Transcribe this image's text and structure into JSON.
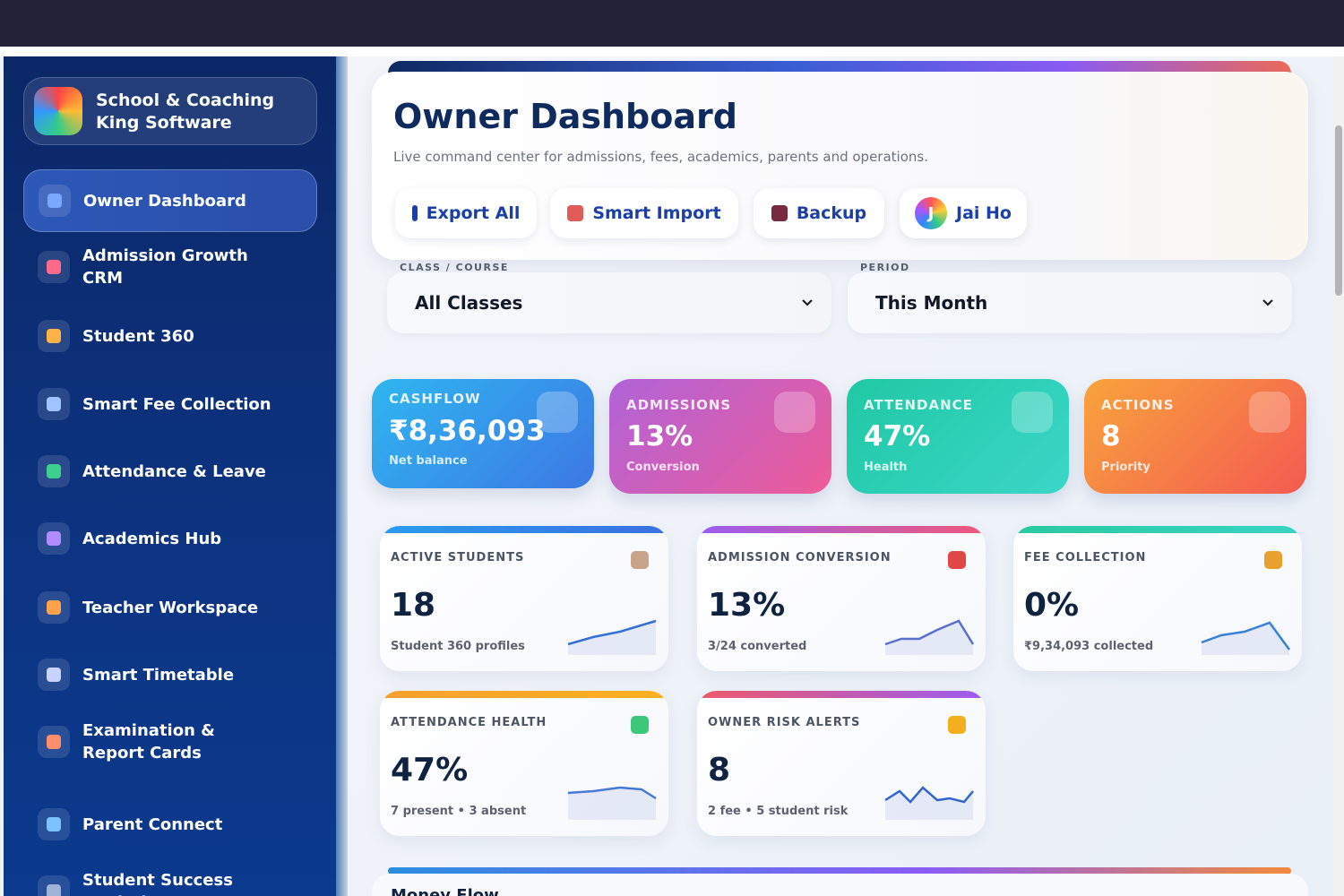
{
  "sidebar": {
    "brand": "School & Coaching King Software",
    "nav": [
      "Owner Dashboard",
      "Admission Growth CRM",
      "Student 360",
      "Smart Fee Collection",
      "Attendance & Leave",
      "Academics Hub",
      "Teacher Workspace",
      "Smart Timetable",
      "Examination & Report Cards",
      "Parent Connect",
      "Student Success Analytics"
    ]
  },
  "header": {
    "title": "Owner Dashboard",
    "subtitle": "Live command center for admissions, fees, academics, parents and operations.",
    "buttons": [
      "Export All",
      "Smart Import",
      "Backup",
      "Jai Ho"
    ],
    "avatar": "J"
  },
  "filters": [
    {
      "label": "CLASS / COURSE",
      "value": "All Classes"
    },
    {
      "label": "PERIOD",
      "value": "This Month"
    }
  ],
  "kpis": [
    {
      "label": "CASHFLOW",
      "value": "₹8,36,093",
      "sub": "Net balance"
    },
    {
      "label": "ADMISSIONS",
      "value": "13%",
      "sub": "Conversion"
    },
    {
      "label": "ATTENDANCE",
      "value": "47%",
      "sub": "Health"
    },
    {
      "label": "ACTIONS",
      "value": "8",
      "sub": "Priority"
    }
  ],
  "cards": [
    {
      "label": "ACTIVE STUDENTS",
      "value": "18",
      "sub": "Student 360 profiles"
    },
    {
      "label": "ADMISSION CONVERSION",
      "value": "13%",
      "sub": "3/24 converted"
    },
    {
      "label": "FEE COLLECTION",
      "value": "0%",
      "sub": "₹9,34,093 collected"
    },
    {
      "label": "ATTENDANCE HEALTH",
      "value": "47%",
      "sub": "7 present • 3 absent"
    },
    {
      "label": "OWNER RISK ALERTS",
      "value": "8",
      "sub": "2 fee • 5 student risk"
    }
  ],
  "section": {
    "title": "Money Flow"
  }
}
